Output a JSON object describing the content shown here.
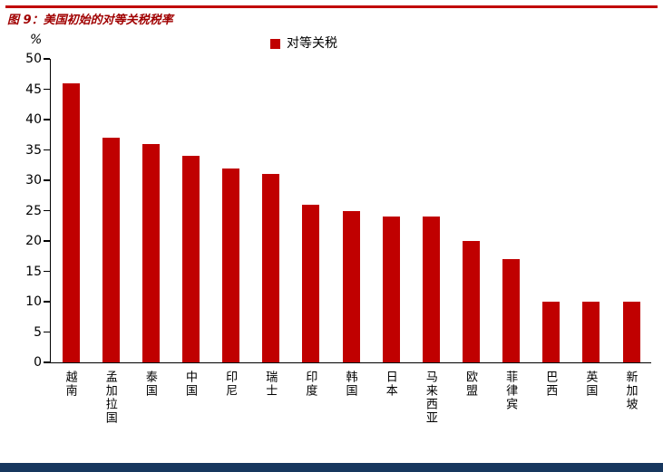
{
  "title": "图 9：美国初始的对等关税税率",
  "chart_data": {
    "type": "bar",
    "title": "图 9：美国初始的对等关税税率",
    "legend": "对等关税",
    "unit": "%",
    "categories": [
      "越南",
      "孟加拉国",
      "泰国",
      "中国",
      "印尼",
      "瑞士",
      "印度",
      "韩国",
      "日本",
      "马来西亚",
      "欧盟",
      "菲律宾",
      "巴西",
      "英国",
      "新加坡"
    ],
    "values": [
      46,
      37,
      36,
      34,
      32,
      31,
      26,
      25,
      24,
      24,
      20,
      17,
      10,
      10,
      10
    ],
    "xlabel": "",
    "ylabel": "%",
    "ylim": [
      0,
      50
    ],
    "yticks": [
      0,
      5,
      10,
      15,
      20,
      25,
      30,
      35,
      40,
      45,
      50
    ],
    "grid": false,
    "legend_position": "top-center",
    "bar_color": "#C00000"
  },
  "colors": {
    "bar": "#C00000",
    "title": "#A00000",
    "top_rule": "#C00000",
    "footer_bar": "#17375E",
    "axis": "#000000"
  }
}
